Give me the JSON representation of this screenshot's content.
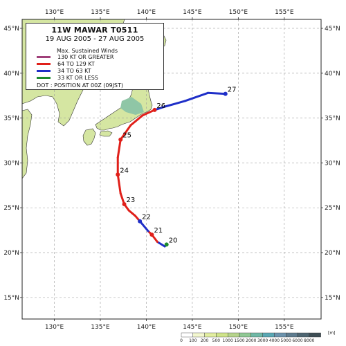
{
  "title": "11W  MAWAR  T0511",
  "date_range": "19 AUG 2005 - 27 AUG 2005",
  "legend": {
    "header": "Max. Sustained Winds",
    "items": [
      {
        "label": "130 KT OR GREATER",
        "color": "#a0407a"
      },
      {
        "label": "64  TO 129 KT",
        "color": "#e0201a"
      },
      {
        "label": "34  TO 63 KT",
        "color": "#1f2fc8"
      },
      {
        "label": "33  KT OR LESS",
        "color": "#1e8a2e"
      }
    ],
    "note": "DOT : POSITION AT 00Z (09JST)"
  },
  "axes": {
    "lon_ticks": [
      "130°E",
      "135°E",
      "140°E",
      "145°E",
      "150°E",
      "155°E"
    ],
    "lat_ticks": [
      "45°N",
      "40°N",
      "35°N",
      "30°N",
      "25°N",
      "20°N",
      "15°N"
    ]
  },
  "elevation_scale": {
    "unit": "[m]",
    "labels": [
      "0",
      "100",
      "200",
      "500",
      "1000",
      "1500",
      "2000",
      "3000",
      "4000",
      "5000",
      "6000",
      "8000"
    ],
    "colors": [
      "#ffffff",
      "#f3f7cf",
      "#e2eea0",
      "#cfe48a",
      "#b6d48c",
      "#8fc894",
      "#6fb8a6",
      "#5aa8b4",
      "#6c93ad",
      "#5e7c8f",
      "#4e6672",
      "#3e4e55"
    ]
  },
  "chart_data": {
    "type": "map",
    "lon_range": [
      126.5,
      159.0
    ],
    "lat_range": [
      12.6,
      46.0
    ],
    "grid": true,
    "legend_position": "top-left",
    "track": [
      {
        "lon": 142.2,
        "lat": 20.9,
        "class": "33  KT OR LESS"
      },
      {
        "lon": 142.0,
        "lat": 20.7,
        "class": "34  TO 63 KT"
      },
      {
        "lon": 141.2,
        "lat": 21.2,
        "class": "34  TO 63 KT"
      },
      {
        "lon": 140.6,
        "lat": 22.0,
        "class": "64  TO 129 KT"
      },
      {
        "lon": 140.2,
        "lat": 22.4,
        "class": "64  TO 129 KT"
      },
      {
        "lon": 139.3,
        "lat": 23.5,
        "class": "34  TO 63 KT"
      },
      {
        "lon": 138.8,
        "lat": 24.1,
        "class": "64  TO 129 KT"
      },
      {
        "lon": 138.1,
        "lat": 24.7,
        "class": "64  TO 129 KT"
      },
      {
        "lon": 137.6,
        "lat": 25.4,
        "class": "64  TO 129 KT"
      },
      {
        "lon": 137.2,
        "lat": 26.6,
        "class": "64  TO 129 KT"
      },
      {
        "lon": 136.9,
        "lat": 28.7,
        "class": "64  TO 129 KT"
      },
      {
        "lon": 136.9,
        "lat": 30.6,
        "class": "64  TO 129 KT"
      },
      {
        "lon": 137.2,
        "lat": 32.6,
        "class": "64  TO 129 KT"
      },
      {
        "lon": 138.3,
        "lat": 34.2,
        "class": "64  TO 129 KT"
      },
      {
        "lon": 139.6,
        "lat": 35.3,
        "class": "64  TO 129 KT"
      },
      {
        "lon": 140.9,
        "lat": 35.9,
        "class": "64  TO 129 KT"
      },
      {
        "lon": 142.1,
        "lat": 36.3,
        "class": "34  TO 63 KT"
      },
      {
        "lon": 144.2,
        "lat": 36.9,
        "class": "34  TO 63 KT"
      },
      {
        "lon": 146.7,
        "lat": 37.8,
        "class": "34  TO 63 KT"
      },
      {
        "lon": 148.6,
        "lat": 37.7,
        "class": "34  TO 63 KT"
      }
    ],
    "daily_positions": [
      {
        "day": "20",
        "lon": 142.2,
        "lat": 20.9,
        "class": "33  KT OR LESS"
      },
      {
        "day": "21",
        "lon": 140.6,
        "lat": 22.0,
        "class": "64  TO 129 KT"
      },
      {
        "day": "22",
        "lon": 139.3,
        "lat": 23.5,
        "class": "34  TO 63 KT"
      },
      {
        "day": "23",
        "lon": 137.6,
        "lat": 25.4,
        "class": "64  TO 129 KT"
      },
      {
        "day": "24",
        "lon": 136.9,
        "lat": 28.7,
        "class": "64  TO 129 KT"
      },
      {
        "day": "25",
        "lon": 137.2,
        "lat": 32.6,
        "class": "64  TO 129 KT"
      },
      {
        "day": "26",
        "lon": 140.9,
        "lat": 35.9,
        "class": "64  TO 129 KT"
      },
      {
        "day": "27",
        "lon": 148.6,
        "lat": 37.7,
        "class": "34  TO 63 KT"
      }
    ]
  }
}
